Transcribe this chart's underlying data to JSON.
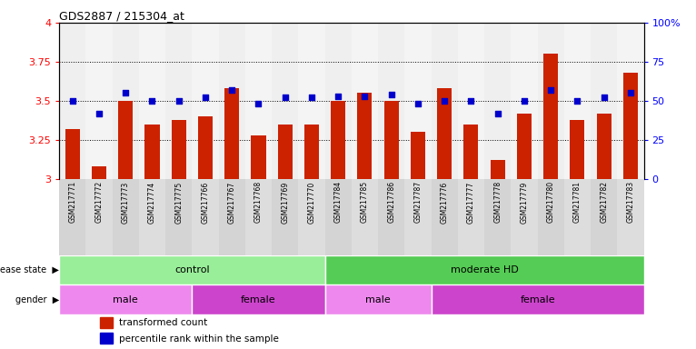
{
  "title": "GDS2887 / 215304_at",
  "samples": [
    "GSM217771",
    "GSM217772",
    "GSM217773",
    "GSM217774",
    "GSM217775",
    "GSM217766",
    "GSM217767",
    "GSM217768",
    "GSM217769",
    "GSM217770",
    "GSM217784",
    "GSM217785",
    "GSM217786",
    "GSM217787",
    "GSM217776",
    "GSM217777",
    "GSM217778",
    "GSM217779",
    "GSM217780",
    "GSM217781",
    "GSM217782",
    "GSM217783"
  ],
  "bar_values": [
    3.32,
    3.08,
    3.5,
    3.35,
    3.38,
    3.4,
    3.58,
    3.28,
    3.35,
    3.35,
    3.5,
    3.55,
    3.5,
    3.3,
    3.58,
    3.35,
    3.12,
    3.42,
    3.8,
    3.38,
    3.42,
    3.68
  ],
  "percentile_values": [
    3.5,
    3.42,
    3.55,
    3.5,
    3.5,
    3.52,
    3.57,
    3.48,
    3.52,
    3.52,
    3.53,
    3.53,
    3.54,
    3.48,
    3.5,
    3.5,
    3.42,
    3.5,
    3.57,
    3.5,
    3.52,
    3.55
  ],
  "ylim": [
    3.0,
    4.0
  ],
  "yticks": [
    3.0,
    3.25,
    3.5,
    3.75,
    4.0
  ],
  "ytick_labels": [
    "3",
    "3.25",
    "3.5",
    "3.75",
    "4"
  ],
  "right_yticks": [
    0,
    25,
    50,
    75,
    100
  ],
  "right_ylabels": [
    "0",
    "25",
    "50",
    "75",
    "100%"
  ],
  "bar_color": "#CC2200",
  "percentile_color": "#0000CC",
  "background_color": "#ffffff",
  "disease_state_groups": [
    {
      "label": "control",
      "start": 0,
      "end": 10,
      "color": "#99EE99"
    },
    {
      "label": "moderate HD",
      "start": 10,
      "end": 22,
      "color": "#55CC55"
    }
  ],
  "gender_groups": [
    {
      "label": "male",
      "start": 0,
      "end": 5,
      "color": "#EE88EE"
    },
    {
      "label": "female",
      "start": 5,
      "end": 10,
      "color": "#CC44CC"
    },
    {
      "label": "male",
      "start": 10,
      "end": 14,
      "color": "#EE88EE"
    },
    {
      "label": "female",
      "start": 14,
      "end": 22,
      "color": "#CC44CC"
    }
  ],
  "legend_items": [
    {
      "label": "transformed count",
      "color": "#CC2200",
      "marker": "s"
    },
    {
      "label": "percentile rank within the sample",
      "color": "#0000CC",
      "marker": "s"
    }
  ]
}
